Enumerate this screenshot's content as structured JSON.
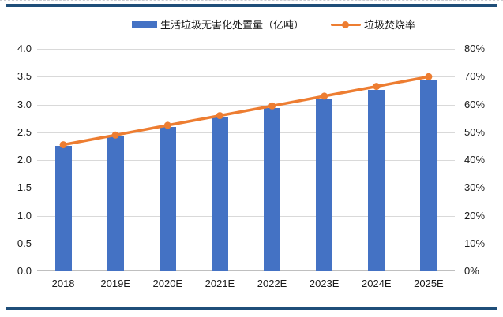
{
  "colors": {
    "bar": "#4472C4",
    "line": "#ED7D31",
    "frame_rule": "#1F4E79",
    "gridline": "#D9D9D9",
    "axis_line": "#BFBFBF",
    "text": "#1a1a1a"
  },
  "legend": {
    "bar_label": "生活垃圾无害化处置量（亿吨）",
    "line_label": "垃圾焚烧率"
  },
  "chart_data": {
    "type": "bar",
    "subtype": "bar-line-combo",
    "categories": [
      "2018",
      "2019E",
      "2020E",
      "2021E",
      "2022E",
      "2023E",
      "2024E",
      "2025E"
    ],
    "series": [
      {
        "name": "生活垃圾无害化处置量（亿吨）",
        "type": "bar",
        "axis": "left",
        "values": [
          2.26,
          2.43,
          2.6,
          2.76,
          2.93,
          3.1,
          3.27,
          3.44
        ]
      },
      {
        "name": "垃圾焚烧率",
        "type": "line",
        "axis": "right",
        "unit": "%",
        "values": [
          45.5,
          49,
          52.5,
          56,
          59.5,
          63,
          66.5,
          70
        ]
      }
    ],
    "left_axis": {
      "min": 0,
      "max": 4.0,
      "step": 0.5,
      "ticks": [
        "4.0",
        "3.5",
        "3.0",
        "2.5",
        "2.0",
        "1.5",
        "1.0",
        "0.5",
        "0.0"
      ]
    },
    "right_axis": {
      "min": 0,
      "max": 80,
      "step": 10,
      "ticks": [
        "80%",
        "70%",
        "60%",
        "50%",
        "40%",
        "30%",
        "20%",
        "10%",
        "0%"
      ]
    },
    "grid": true,
    "legend_position": "top"
  }
}
